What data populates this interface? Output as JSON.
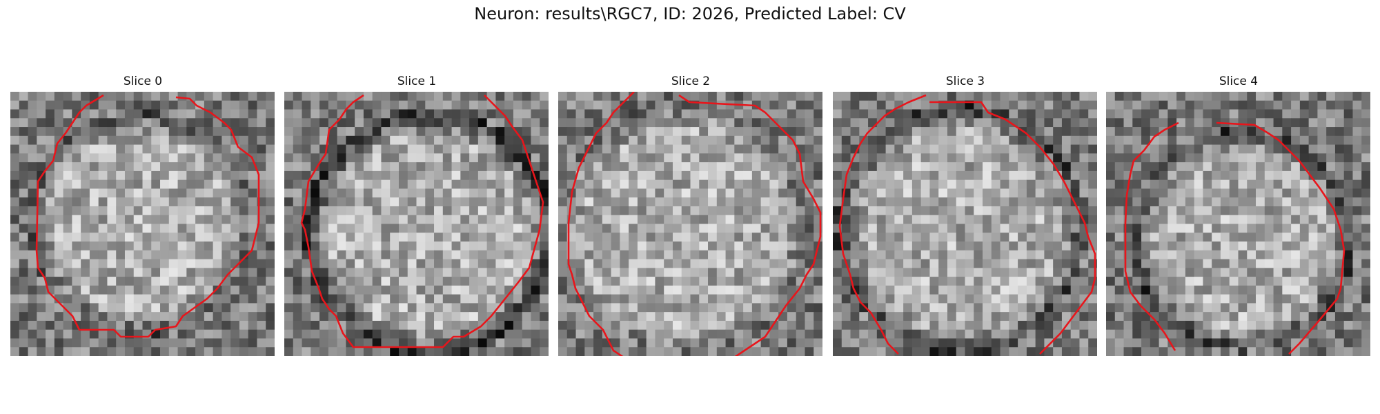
{
  "figure": {
    "title": "Neuron: results\\RGC7, ID: 2026, Predicted Label: CV"
  },
  "colors": {
    "contour": "#e8151b",
    "background": "#ffffff"
  },
  "panels": [
    {
      "title": "Slice 0"
    },
    {
      "title": "Slice 1"
    },
    {
      "title": "Slice 2"
    },
    {
      "title": "Slice 3"
    },
    {
      "title": "Slice 4"
    }
  ]
}
